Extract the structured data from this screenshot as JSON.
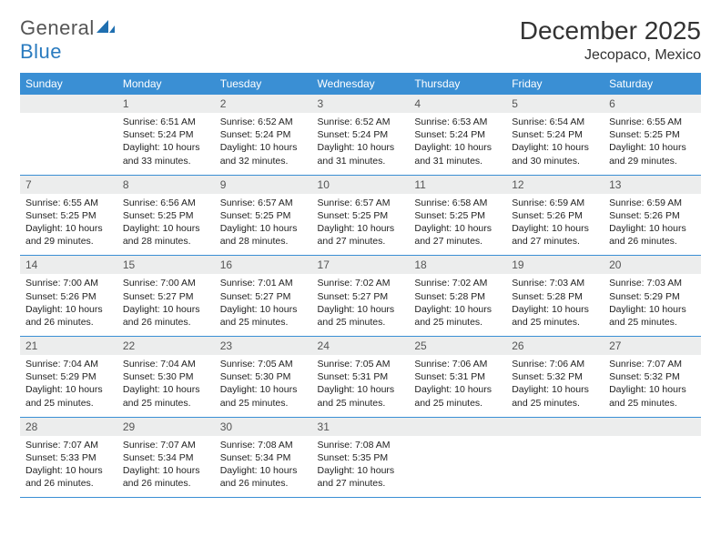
{
  "logo": {
    "text1": "General",
    "text2": "Blue"
  },
  "title": "December 2025",
  "location": "Jecopaco, Mexico",
  "colors": {
    "header_bg": "#3a8fd4",
    "header_text": "#ffffff",
    "daynum_bg": "#eceded",
    "border": "#3a8fd4",
    "logo_gray": "#555555",
    "logo_blue": "#2a7bbf"
  },
  "weekdays": [
    "Sunday",
    "Monday",
    "Tuesday",
    "Wednesday",
    "Thursday",
    "Friday",
    "Saturday"
  ],
  "weeks": [
    [
      {
        "n": "",
        "sunrise": "",
        "sunset": "",
        "daylight": ""
      },
      {
        "n": "1",
        "sunrise": "Sunrise: 6:51 AM",
        "sunset": "Sunset: 5:24 PM",
        "daylight": "Daylight: 10 hours and 33 minutes."
      },
      {
        "n": "2",
        "sunrise": "Sunrise: 6:52 AM",
        "sunset": "Sunset: 5:24 PM",
        "daylight": "Daylight: 10 hours and 32 minutes."
      },
      {
        "n": "3",
        "sunrise": "Sunrise: 6:52 AM",
        "sunset": "Sunset: 5:24 PM",
        "daylight": "Daylight: 10 hours and 31 minutes."
      },
      {
        "n": "4",
        "sunrise": "Sunrise: 6:53 AM",
        "sunset": "Sunset: 5:24 PM",
        "daylight": "Daylight: 10 hours and 31 minutes."
      },
      {
        "n": "5",
        "sunrise": "Sunrise: 6:54 AM",
        "sunset": "Sunset: 5:24 PM",
        "daylight": "Daylight: 10 hours and 30 minutes."
      },
      {
        "n": "6",
        "sunrise": "Sunrise: 6:55 AM",
        "sunset": "Sunset: 5:25 PM",
        "daylight": "Daylight: 10 hours and 29 minutes."
      }
    ],
    [
      {
        "n": "7",
        "sunrise": "Sunrise: 6:55 AM",
        "sunset": "Sunset: 5:25 PM",
        "daylight": "Daylight: 10 hours and 29 minutes."
      },
      {
        "n": "8",
        "sunrise": "Sunrise: 6:56 AM",
        "sunset": "Sunset: 5:25 PM",
        "daylight": "Daylight: 10 hours and 28 minutes."
      },
      {
        "n": "9",
        "sunrise": "Sunrise: 6:57 AM",
        "sunset": "Sunset: 5:25 PM",
        "daylight": "Daylight: 10 hours and 28 minutes."
      },
      {
        "n": "10",
        "sunrise": "Sunrise: 6:57 AM",
        "sunset": "Sunset: 5:25 PM",
        "daylight": "Daylight: 10 hours and 27 minutes."
      },
      {
        "n": "11",
        "sunrise": "Sunrise: 6:58 AM",
        "sunset": "Sunset: 5:25 PM",
        "daylight": "Daylight: 10 hours and 27 minutes."
      },
      {
        "n": "12",
        "sunrise": "Sunrise: 6:59 AM",
        "sunset": "Sunset: 5:26 PM",
        "daylight": "Daylight: 10 hours and 27 minutes."
      },
      {
        "n": "13",
        "sunrise": "Sunrise: 6:59 AM",
        "sunset": "Sunset: 5:26 PM",
        "daylight": "Daylight: 10 hours and 26 minutes."
      }
    ],
    [
      {
        "n": "14",
        "sunrise": "Sunrise: 7:00 AM",
        "sunset": "Sunset: 5:26 PM",
        "daylight": "Daylight: 10 hours and 26 minutes."
      },
      {
        "n": "15",
        "sunrise": "Sunrise: 7:00 AM",
        "sunset": "Sunset: 5:27 PM",
        "daylight": "Daylight: 10 hours and 26 minutes."
      },
      {
        "n": "16",
        "sunrise": "Sunrise: 7:01 AM",
        "sunset": "Sunset: 5:27 PM",
        "daylight": "Daylight: 10 hours and 25 minutes."
      },
      {
        "n": "17",
        "sunrise": "Sunrise: 7:02 AM",
        "sunset": "Sunset: 5:27 PM",
        "daylight": "Daylight: 10 hours and 25 minutes."
      },
      {
        "n": "18",
        "sunrise": "Sunrise: 7:02 AM",
        "sunset": "Sunset: 5:28 PM",
        "daylight": "Daylight: 10 hours and 25 minutes."
      },
      {
        "n": "19",
        "sunrise": "Sunrise: 7:03 AM",
        "sunset": "Sunset: 5:28 PM",
        "daylight": "Daylight: 10 hours and 25 minutes."
      },
      {
        "n": "20",
        "sunrise": "Sunrise: 7:03 AM",
        "sunset": "Sunset: 5:29 PM",
        "daylight": "Daylight: 10 hours and 25 minutes."
      }
    ],
    [
      {
        "n": "21",
        "sunrise": "Sunrise: 7:04 AM",
        "sunset": "Sunset: 5:29 PM",
        "daylight": "Daylight: 10 hours and 25 minutes."
      },
      {
        "n": "22",
        "sunrise": "Sunrise: 7:04 AM",
        "sunset": "Sunset: 5:30 PM",
        "daylight": "Daylight: 10 hours and 25 minutes."
      },
      {
        "n": "23",
        "sunrise": "Sunrise: 7:05 AM",
        "sunset": "Sunset: 5:30 PM",
        "daylight": "Daylight: 10 hours and 25 minutes."
      },
      {
        "n": "24",
        "sunrise": "Sunrise: 7:05 AM",
        "sunset": "Sunset: 5:31 PM",
        "daylight": "Daylight: 10 hours and 25 minutes."
      },
      {
        "n": "25",
        "sunrise": "Sunrise: 7:06 AM",
        "sunset": "Sunset: 5:31 PM",
        "daylight": "Daylight: 10 hours and 25 minutes."
      },
      {
        "n": "26",
        "sunrise": "Sunrise: 7:06 AM",
        "sunset": "Sunset: 5:32 PM",
        "daylight": "Daylight: 10 hours and 25 minutes."
      },
      {
        "n": "27",
        "sunrise": "Sunrise: 7:07 AM",
        "sunset": "Sunset: 5:32 PM",
        "daylight": "Daylight: 10 hours and 25 minutes."
      }
    ],
    [
      {
        "n": "28",
        "sunrise": "Sunrise: 7:07 AM",
        "sunset": "Sunset: 5:33 PM",
        "daylight": "Daylight: 10 hours and 26 minutes."
      },
      {
        "n": "29",
        "sunrise": "Sunrise: 7:07 AM",
        "sunset": "Sunset: 5:34 PM",
        "daylight": "Daylight: 10 hours and 26 minutes."
      },
      {
        "n": "30",
        "sunrise": "Sunrise: 7:08 AM",
        "sunset": "Sunset: 5:34 PM",
        "daylight": "Daylight: 10 hours and 26 minutes."
      },
      {
        "n": "31",
        "sunrise": "Sunrise: 7:08 AM",
        "sunset": "Sunset: 5:35 PM",
        "daylight": "Daylight: 10 hours and 27 minutes."
      },
      {
        "n": "",
        "sunrise": "",
        "sunset": "",
        "daylight": ""
      },
      {
        "n": "",
        "sunrise": "",
        "sunset": "",
        "daylight": ""
      },
      {
        "n": "",
        "sunrise": "",
        "sunset": "",
        "daylight": ""
      }
    ]
  ]
}
